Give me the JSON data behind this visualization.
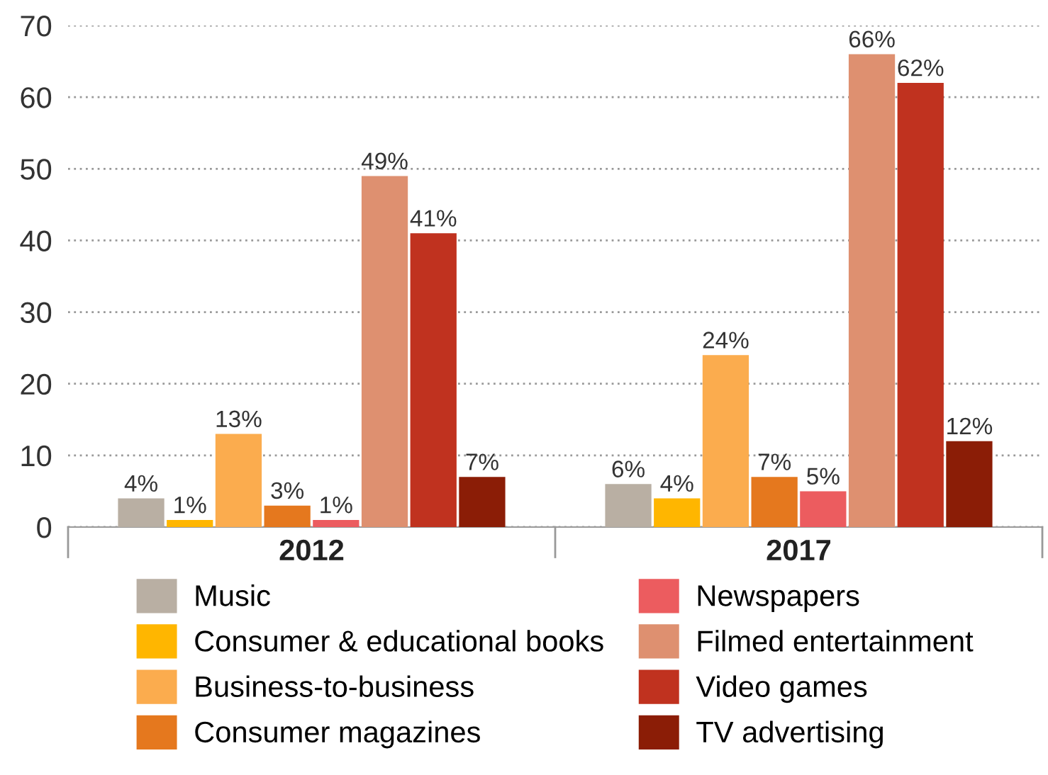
{
  "chart_data": {
    "type": "bar",
    "categories": [
      "2012",
      "2017"
    ],
    "ylim": [
      0,
      70
    ],
    "yticks": [
      0,
      10,
      20,
      30,
      40,
      50,
      60,
      70
    ],
    "grid": "y",
    "legend": "bottom",
    "series": [
      {
        "name": "Music",
        "color": "#b9afa3",
        "values": [
          4,
          6
        ],
        "value_labels": [
          "4%",
          "6%"
        ]
      },
      {
        "name": "Consumer & educational books",
        "color": "#ffb600",
        "values": [
          1,
          4
        ],
        "value_labels": [
          "1%",
          "4%"
        ]
      },
      {
        "name": "Business-to-business",
        "color": "#fbac4e",
        "values": [
          13,
          24
        ],
        "value_labels": [
          "13%",
          "24%"
        ]
      },
      {
        "name": "Consumer magazines",
        "color": "#e5781e",
        "values": [
          3,
          7
        ],
        "value_labels": [
          "3%",
          "7%"
        ]
      },
      {
        "name": "Newspapers",
        "color": "#ec5c5f",
        "values": [
          1,
          5
        ],
        "value_labels": [
          "1%",
          "5%"
        ]
      },
      {
        "name": "Filmed entertainment",
        "color": "#de9070",
        "values": [
          49,
          66
        ],
        "value_labels": [
          "49%",
          "66%"
        ]
      },
      {
        "name": "Video games",
        "color": "#c0321f",
        "values": [
          41,
          62
        ],
        "value_labels": [
          "41%",
          "62%"
        ]
      },
      {
        "name": "TV advertising",
        "color": "#8b1d06",
        "values": [
          7,
          12
        ],
        "value_labels": [
          "7%",
          "12%"
        ]
      }
    ]
  }
}
